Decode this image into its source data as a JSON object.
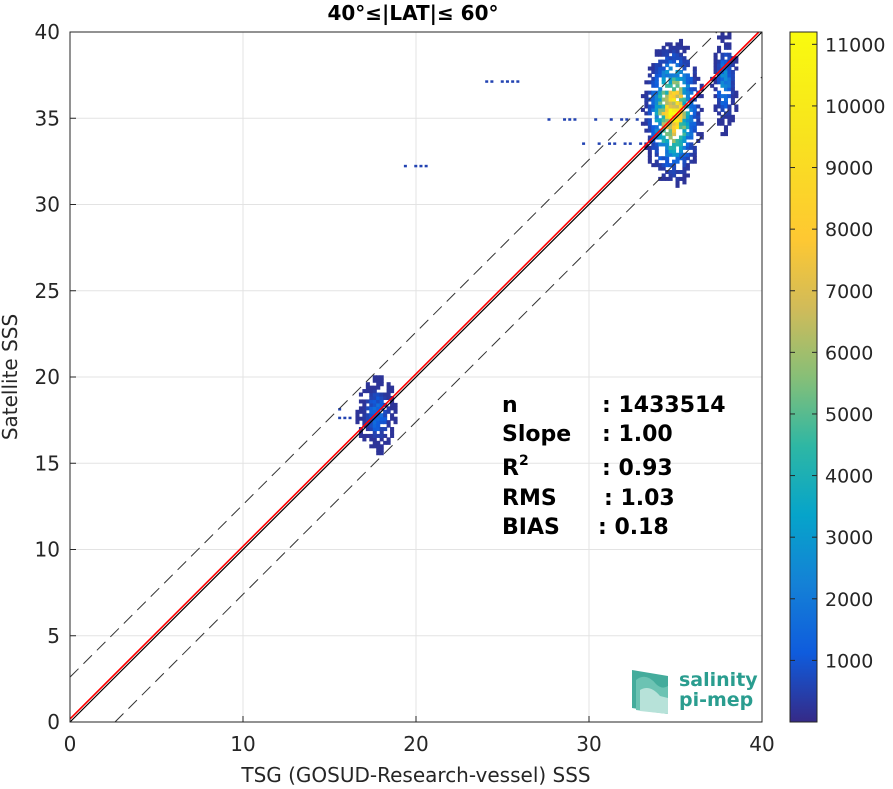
{
  "chart_data": {
    "type": "heatmap",
    "title": "40°≤|LAT|≤ 60°",
    "xlabel": "TSG (GOSUD-Research-vessel) SSS",
    "ylabel": "Satellite SSS",
    "xlim": [
      0,
      40
    ],
    "ylim": [
      0,
      40
    ],
    "xticks": [
      "0",
      "10",
      "20",
      "30",
      "40"
    ],
    "yticks": [
      "0",
      "5",
      "10",
      "15",
      "20",
      "25",
      "30",
      "35",
      "40"
    ],
    "grid": true,
    "colorbar": {
      "colormap": "parula",
      "range": [
        0,
        11200
      ],
      "ticks": [
        "1000",
        "2000",
        "3000",
        "4000",
        "5000",
        "6000",
        "7000",
        "8000",
        "9000",
        "10000",
        "11000"
      ],
      "tick_values": [
        1000,
        2000,
        3000,
        4000,
        5000,
        6000,
        7000,
        8000,
        9000,
        10000,
        11000
      ]
    },
    "reference_lines": {
      "one_to_one": {
        "color": "#000000"
      },
      "regression": {
        "slope": 1.0,
        "intercept": 0.18,
        "color": "#ff0000"
      },
      "envelope_offsets": [
        2.6,
        -2.6
      ]
    },
    "clusters": [
      {
        "x": [
          33.0,
          36.5
        ],
        "y": [
          31.0,
          39.5
        ],
        "peak": 11000
      },
      {
        "x": [
          37.0,
          38.5
        ],
        "y": [
          34.0,
          40.0
        ],
        "peak": 3000
      },
      {
        "x": [
          16.5,
          18.8
        ],
        "y": [
          15.5,
          20.0
        ],
        "peak": 2000
      }
    ],
    "stats": {
      "n": {
        "label": "n",
        "value": ": 1433514"
      },
      "slope": {
        "label": "Slope",
        "value": ": 1.00"
      },
      "r2": {
        "label": "R",
        "sup": "2",
        "value": ": 0.93"
      },
      "rms": {
        "label": "RMS",
        "value": ": 1.03"
      },
      "bias": {
        "label": "BIAS",
        "value": ": 0.18"
      }
    }
  },
  "logo": {
    "line1": "salinity",
    "line2": "pi-mep"
  }
}
